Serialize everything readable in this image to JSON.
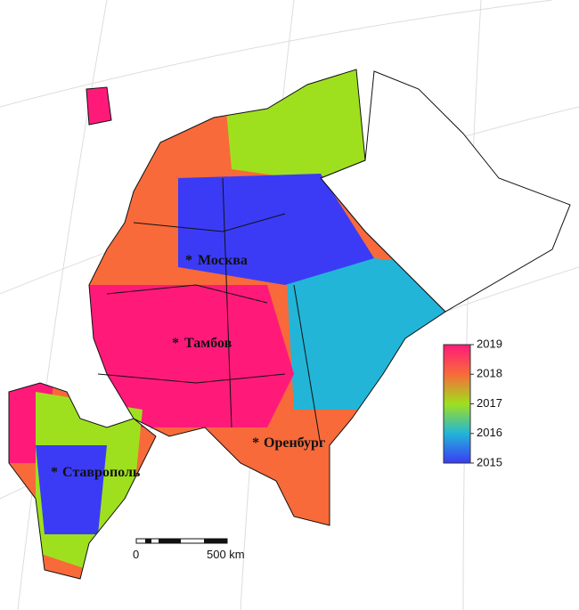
{
  "map": {
    "cities": [
      {
        "name": "Москва"
      },
      {
        "name": "Тамбов"
      },
      {
        "name": "Оренбург"
      },
      {
        "name": "Ставрополь"
      }
    ],
    "colorbar": {
      "range": [
        2015,
        2019
      ],
      "ticks": [
        2015,
        2016,
        2017,
        2018,
        2019
      ]
    },
    "scale_bar": {
      "start": "0",
      "end": "500 km"
    }
  }
}
